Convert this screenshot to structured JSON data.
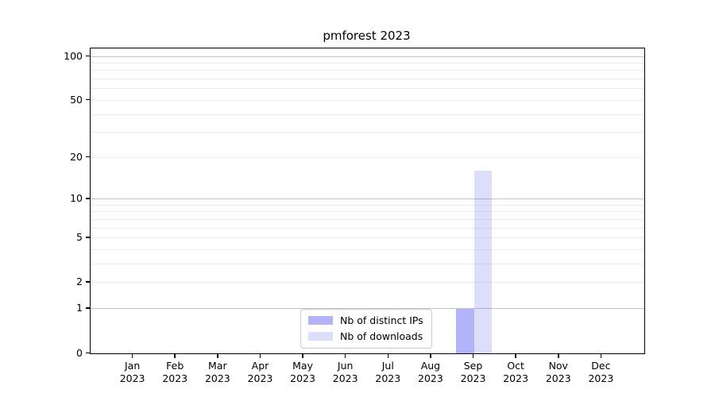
{
  "chart_data": {
    "type": "bar",
    "title": "pmforest 2023",
    "categories": [
      "Jan",
      "Feb",
      "Mar",
      "Apr",
      "May",
      "Jun",
      "Jul",
      "Aug",
      "Sep",
      "Oct",
      "Nov",
      "Dec"
    ],
    "x_year": "2023",
    "series": [
      {
        "name": "Nb of distinct IPs",
        "color": "#5757f2",
        "alpha": 0.45,
        "values": [
          0,
          0,
          0,
          0,
          0,
          0,
          0,
          0,
          1,
          0,
          0,
          0
        ]
      },
      {
        "name": "Nb of downloads",
        "color": "#5757f2",
        "alpha": 0.2,
        "values": [
          0,
          0,
          0,
          0,
          0,
          0,
          0,
          0,
          16,
          0,
          0,
          0
        ]
      }
    ],
    "y_scale": "log1p",
    "ylim": [
      0,
      113
    ],
    "y_ticks": [
      0,
      1,
      2,
      5,
      10,
      20,
      50,
      100
    ],
    "y_major_grid": [
      1,
      10,
      100
    ],
    "y_minor_grid": [
      2,
      3,
      4,
      5,
      6,
      7,
      8,
      9,
      20,
      30,
      40,
      50,
      60,
      70,
      80,
      90
    ],
    "grid": true,
    "legend_position": "lower center",
    "axis_color": "#000000",
    "major_grid_color": "#c4c4c4",
    "minor_grid_color": "#ededed"
  }
}
